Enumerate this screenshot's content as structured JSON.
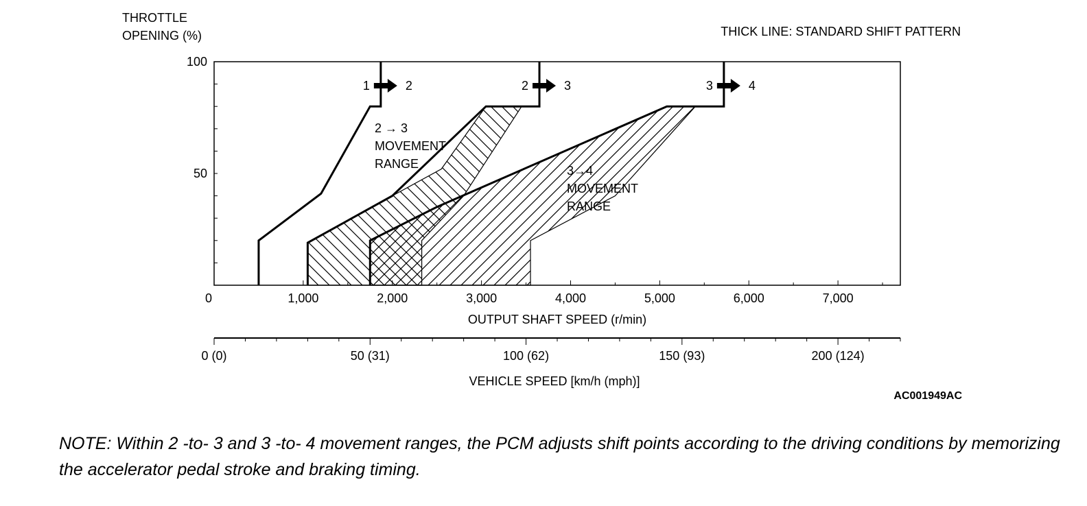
{
  "chart_data": {
    "type": "line",
    "title": "",
    "ylabel_lines": [
      "THROTTLE",
      "OPENING (%)"
    ],
    "xlabel": "OUTPUT SHAFT SPEED (r/min)",
    "x2label": "VEHICLE SPEED [km/h (mph)]",
    "legend_note": "THICK LINE: STANDARD SHIFT PATTERN",
    "xlim": [
      0,
      7700
    ],
    "ylim": [
      0,
      100
    ],
    "x_ticks": [
      {
        "value": 0,
        "label": "0"
      },
      {
        "value": 1000,
        "label": "1,000"
      },
      {
        "value": 2000,
        "label": "2,000"
      },
      {
        "value": 3000,
        "label": "3,000"
      },
      {
        "value": 4000,
        "label": "4,000"
      },
      {
        "value": 5000,
        "label": "5,000"
      },
      {
        "value": 6000,
        "label": "6,000"
      },
      {
        "value": 7000,
        "label": "7,000"
      }
    ],
    "y_ticks": [
      {
        "value": 0,
        "label": ""
      },
      {
        "value": 50,
        "label": "50"
      },
      {
        "value": 100,
        "label": "100"
      }
    ],
    "vehicle_speed_ticks": [
      {
        "value": 0,
        "label": "0 (0)"
      },
      {
        "value": 50,
        "label": "50 (31)"
      },
      {
        "value": 100,
        "label": "100 (62)"
      },
      {
        "value": 150,
        "label": "150 (93)"
      },
      {
        "value": 200,
        "label": "200 (124)"
      }
    ],
    "vehicle_speed_max": 220,
    "series": [
      {
        "name": "1-2",
        "label_from": "1",
        "label_to": "2",
        "x": [
          500,
          500,
          1200,
          1750,
          1870,
          1870
        ],
        "y": [
          0,
          20,
          41,
          80,
          80,
          100
        ]
      },
      {
        "name": "2-3",
        "label_from": "2",
        "label_to": "3",
        "x": [
          1050,
          1050,
          2000,
          3050,
          3650,
          3650
        ],
        "y": [
          0,
          19,
          40,
          80,
          80,
          100
        ]
      },
      {
        "name": "3-4",
        "label_from": "3",
        "label_to": "4",
        "x": [
          1750,
          1750,
          2500,
          5080,
          5720,
          5720
        ],
        "y": [
          0,
          20,
          35,
          80,
          80,
          100
        ]
      }
    ],
    "ranges": [
      {
        "name": "2-3",
        "label_lines": [
          "2 → 3",
          "MOVEMENT",
          "RANGE"
        ],
        "x": [
          1050,
          1050,
          2000,
          2550,
          3050,
          3450,
          2800,
          2330,
          2330
        ],
        "y": [
          0,
          19,
          40,
          52,
          80,
          80,
          40,
          20,
          0
        ]
      },
      {
        "name": "3-4",
        "label_lines": [
          "3→4",
          "MOVEMENT",
          "RANGE"
        ],
        "x": [
          1750,
          1750,
          2500,
          5080,
          5400,
          4500,
          3550,
          3550
        ],
        "y": [
          0,
          20,
          35,
          80,
          80,
          40,
          20,
          0
        ]
      }
    ]
  },
  "diagram_code": "AC001949AC",
  "note": "NOTE: Within 2 -to- 3 and 3 -to- 4 movement ranges, the PCM adjusts shift points according to the driving conditions by memorizing the accelerator pedal stroke and braking timing."
}
